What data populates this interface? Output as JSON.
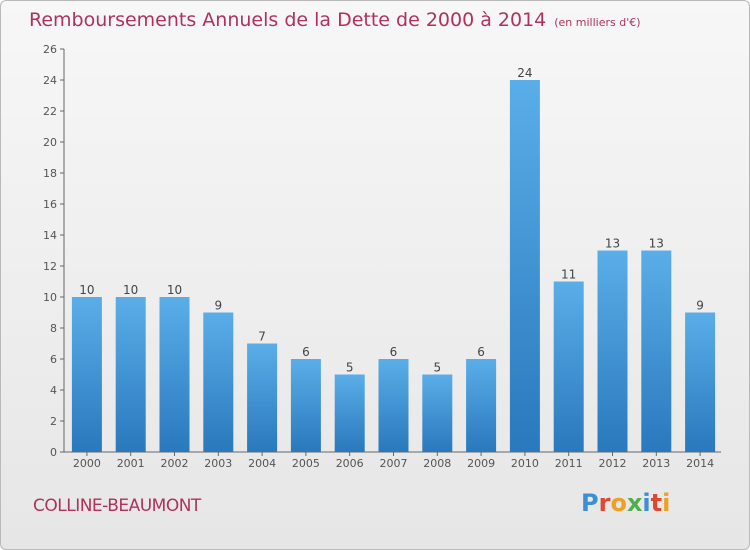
{
  "header": {
    "title": "Remboursements Annuels de la Dette de 2000 à 2014",
    "subtitle": "(en milliers d'€)"
  },
  "footer": {
    "commune": "COLLINE-BEAUMONT",
    "logo_letters": [
      "P",
      "r",
      "o",
      "x",
      "i",
      "t",
      "i"
    ]
  },
  "colors": {
    "title": "#b0325b",
    "bar_top": "#5aaee8",
    "bar_bottom": "#2a78bd"
  },
  "chart_data": {
    "type": "bar",
    "categories": [
      "2000",
      "2001",
      "2002",
      "2003",
      "2004",
      "2005",
      "2006",
      "2007",
      "2008",
      "2009",
      "2010",
      "2011",
      "2012",
      "2013",
      "2014"
    ],
    "values": [
      10,
      10,
      10,
      9,
      7,
      6,
      5,
      6,
      5,
      6,
      24,
      11,
      13,
      13,
      9
    ],
    "ylim": [
      0,
      26
    ],
    "yticks": [
      0,
      2,
      4,
      6,
      8,
      10,
      12,
      14,
      16,
      18,
      20,
      22,
      24,
      26
    ],
    "grid": false,
    "data_labels": true
  }
}
